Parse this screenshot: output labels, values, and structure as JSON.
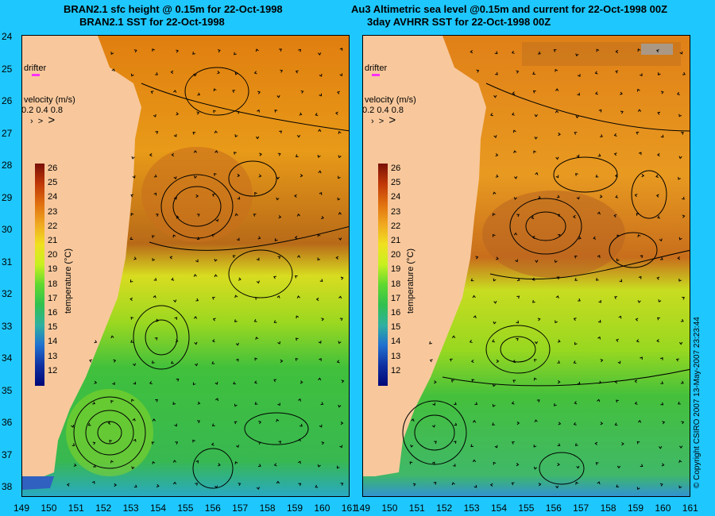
{
  "panels": [
    {
      "title_line1": "BRAN2.1 sfc height @ 0.15m for 22-Oct-1998",
      "title_line2": "BRAN2.1 SST for 22-Oct-1998"
    },
    {
      "title_line1": "Au3 Altimetric sea level  @0.15m and current for 22-Oct-1998 00Z",
      "title_line2": "3day AVHRR SST for 22-Oct-1998 00Z"
    }
  ],
  "y_axis": [
    "24",
    "25",
    "26",
    "27",
    "28",
    "29",
    "30",
    "31",
    "32",
    "33",
    "34",
    "35",
    "36",
    "37",
    "38"
  ],
  "x_axis": [
    "149",
    "150",
    "151",
    "152",
    "153",
    "154",
    "155",
    "156",
    "157",
    "158",
    "159",
    "160",
    "161"
  ],
  "legend": {
    "drifter_label": "drifter",
    "velocity_label": "velocity (m/s)",
    "velocity_values": "0.2 0.4 0.8",
    "colorbar_ticks": [
      "26",
      "25",
      "24",
      "23",
      "22",
      "21",
      "20",
      "19",
      "18",
      "17",
      "16",
      "15",
      "14",
      "13",
      "12"
    ],
    "colorbar_unit": "temperature (°C)"
  },
  "copyright": "© Copyright CSIRO 2007  13-May-2007 23:23:44",
  "colors": {
    "background": "#1ec8ff",
    "land": "#f8c89c",
    "warm": "#e08a14",
    "mid": "#a8e020",
    "cool": "#38c040",
    "drifter": "#ff30ff"
  }
}
